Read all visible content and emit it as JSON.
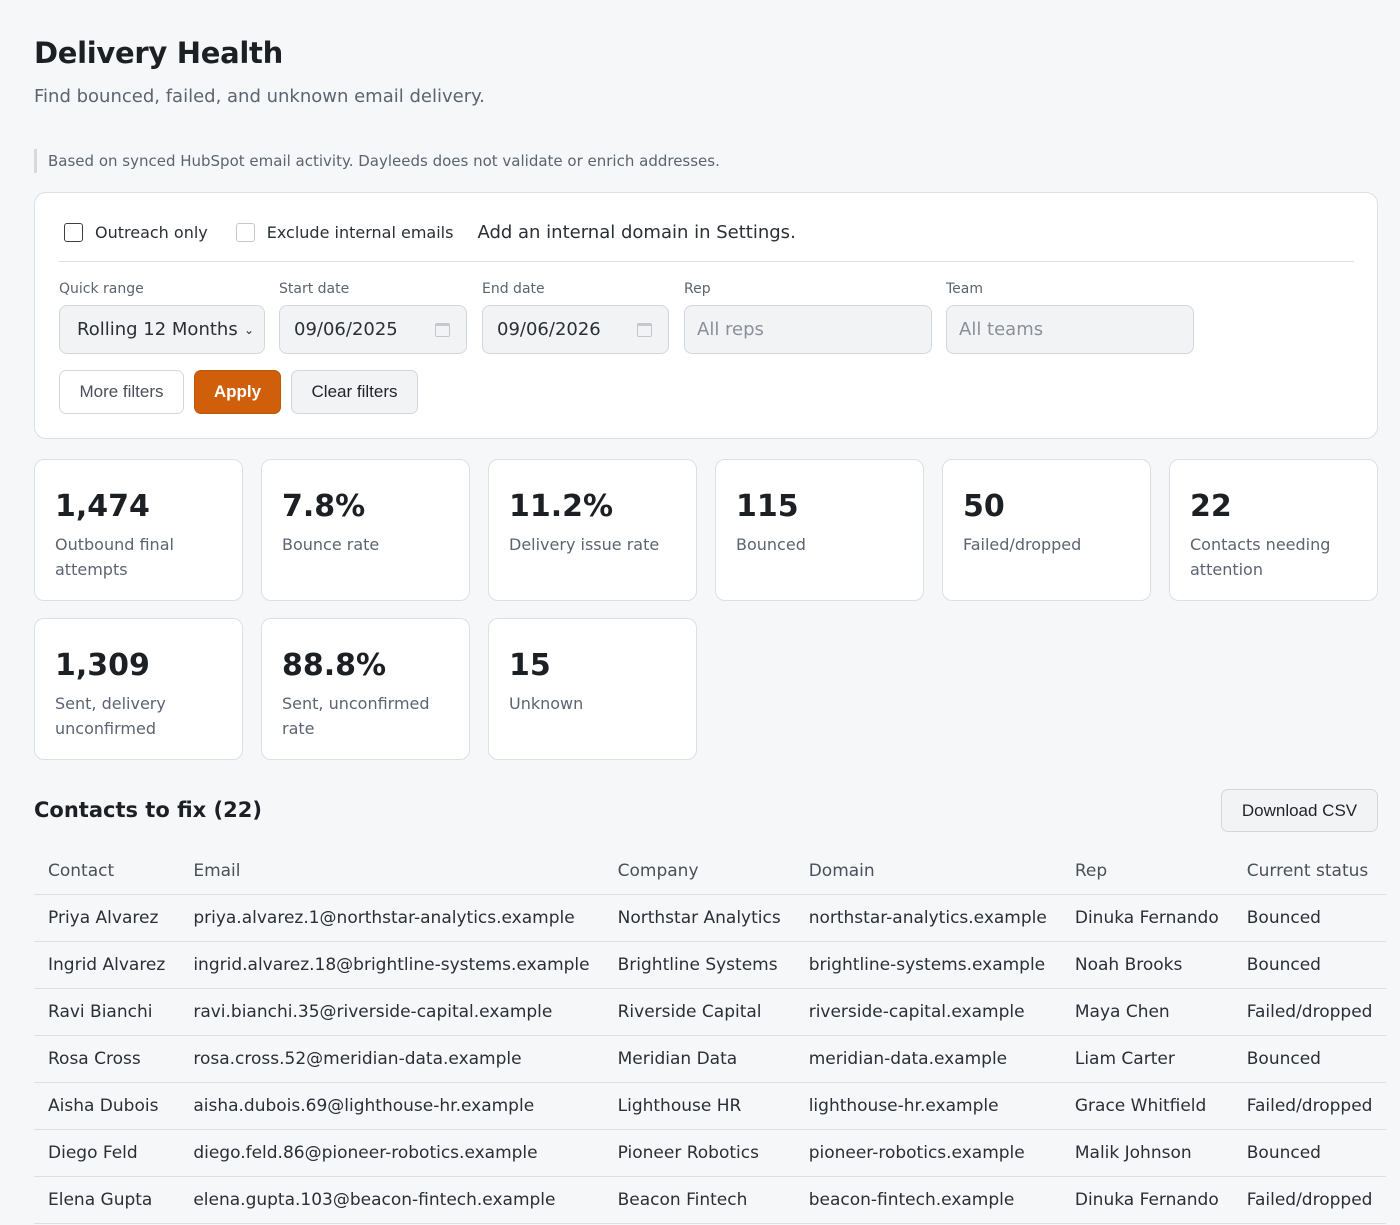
{
  "header": {
    "title": "Delivery Health",
    "subtitle": "Find bounced, failed, and unknown email delivery.",
    "notice": "Based on synced HubSpot email activity. Dayleeds does not validate or enrich addresses."
  },
  "filters": {
    "outreach_only_label": "Outreach only",
    "exclude_internal_label": "Exclude internal emails",
    "internal_hint": "Add an internal domain in Settings.",
    "quick_range": {
      "label": "Quick range",
      "value": "Rolling 12 Months"
    },
    "start_date": {
      "label": "Start date",
      "value": "09/06/2025"
    },
    "end_date": {
      "label": "End date",
      "value": "09/06/2026"
    },
    "rep": {
      "label": "Rep",
      "placeholder": "All reps"
    },
    "team": {
      "label": "Team",
      "placeholder": "All teams"
    },
    "more_filters_label": "More filters",
    "apply_label": "Apply",
    "clear_label": "Clear filters"
  },
  "stats": [
    {
      "value": "1,474",
      "label": "Outbound final attempts"
    },
    {
      "value": "7.8%",
      "label": "Bounce rate"
    },
    {
      "value": "11.2%",
      "label": "Delivery issue rate"
    },
    {
      "value": "115",
      "label": "Bounced"
    },
    {
      "value": "50",
      "label": "Failed/dropped"
    },
    {
      "value": "22",
      "label": "Contacts needing attention"
    },
    {
      "value": "1,309",
      "label": "Sent, delivery unconfirmed"
    },
    {
      "value": "88.8%",
      "label": "Sent, unconfirmed rate"
    },
    {
      "value": "15",
      "label": "Unknown"
    }
  ],
  "contacts": {
    "title": "Contacts to fix (22)",
    "download_label": "Download CSV",
    "columns": [
      "Contact",
      "Email",
      "Company",
      "Domain",
      "Rep",
      "Current status"
    ],
    "rows": [
      [
        "Priya Alvarez",
        "priya.alvarez.1@northstar-analytics.example",
        "Northstar Analytics",
        "northstar-analytics.example",
        "Dinuka Fernando",
        "Bounced"
      ],
      [
        "Ingrid Alvarez",
        "ingrid.alvarez.18@brightline-systems.example",
        "Brightline Systems",
        "brightline-systems.example",
        "Noah Brooks",
        "Bounced"
      ],
      [
        "Ravi Bianchi",
        "ravi.bianchi.35@riverside-capital.example",
        "Riverside Capital",
        "riverside-capital.example",
        "Maya Chen",
        "Failed/dropped"
      ],
      [
        "Rosa Cross",
        "rosa.cross.52@meridian-data.example",
        "Meridian Data",
        "meridian-data.example",
        "Liam Carter",
        "Bounced"
      ],
      [
        "Aisha Dubois",
        "aisha.dubois.69@lighthouse-hr.example",
        "Lighthouse HR",
        "lighthouse-hr.example",
        "Grace Whitfield",
        "Failed/dropped"
      ],
      [
        "Diego Feld",
        "diego.feld.86@pioneer-robotics.example",
        "Pioneer Robotics",
        "pioneer-robotics.example",
        "Malik Johnson",
        "Bounced"
      ],
      [
        "Elena Gupta",
        "elena.gupta.103@beacon-fintech.example",
        "Beacon Fintech",
        "beacon-fintech.example",
        "Dinuka Fernando",
        "Failed/dropped"
      ]
    ]
  }
}
